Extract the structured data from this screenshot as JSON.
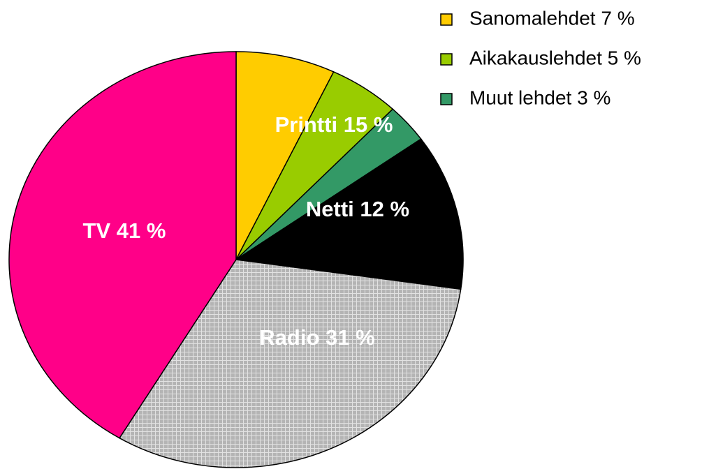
{
  "chart_data": {
    "type": "pie",
    "categories": [
      "Sanomalehdet 7 %",
      "Aikakauslehdet 5 %",
      "Muut lehdet 3 %",
      "Netti 12 %",
      "Radio 31 %",
      "TV 41 %"
    ],
    "values": [
      7,
      5,
      3,
      12,
      31,
      41
    ],
    "colors": [
      "#ffcc00",
      "#99cc00",
      "#339966",
      "#000000",
      "#b4b4b4",
      "#ff0088"
    ],
    "hatched": [
      false,
      false,
      false,
      false,
      true,
      false
    ],
    "label_position": [
      "legend",
      "legend",
      "legend",
      "inside",
      "inside",
      "inside"
    ],
    "annotations": [
      "Printti 15 %"
    ],
    "legend": "top-right"
  }
}
